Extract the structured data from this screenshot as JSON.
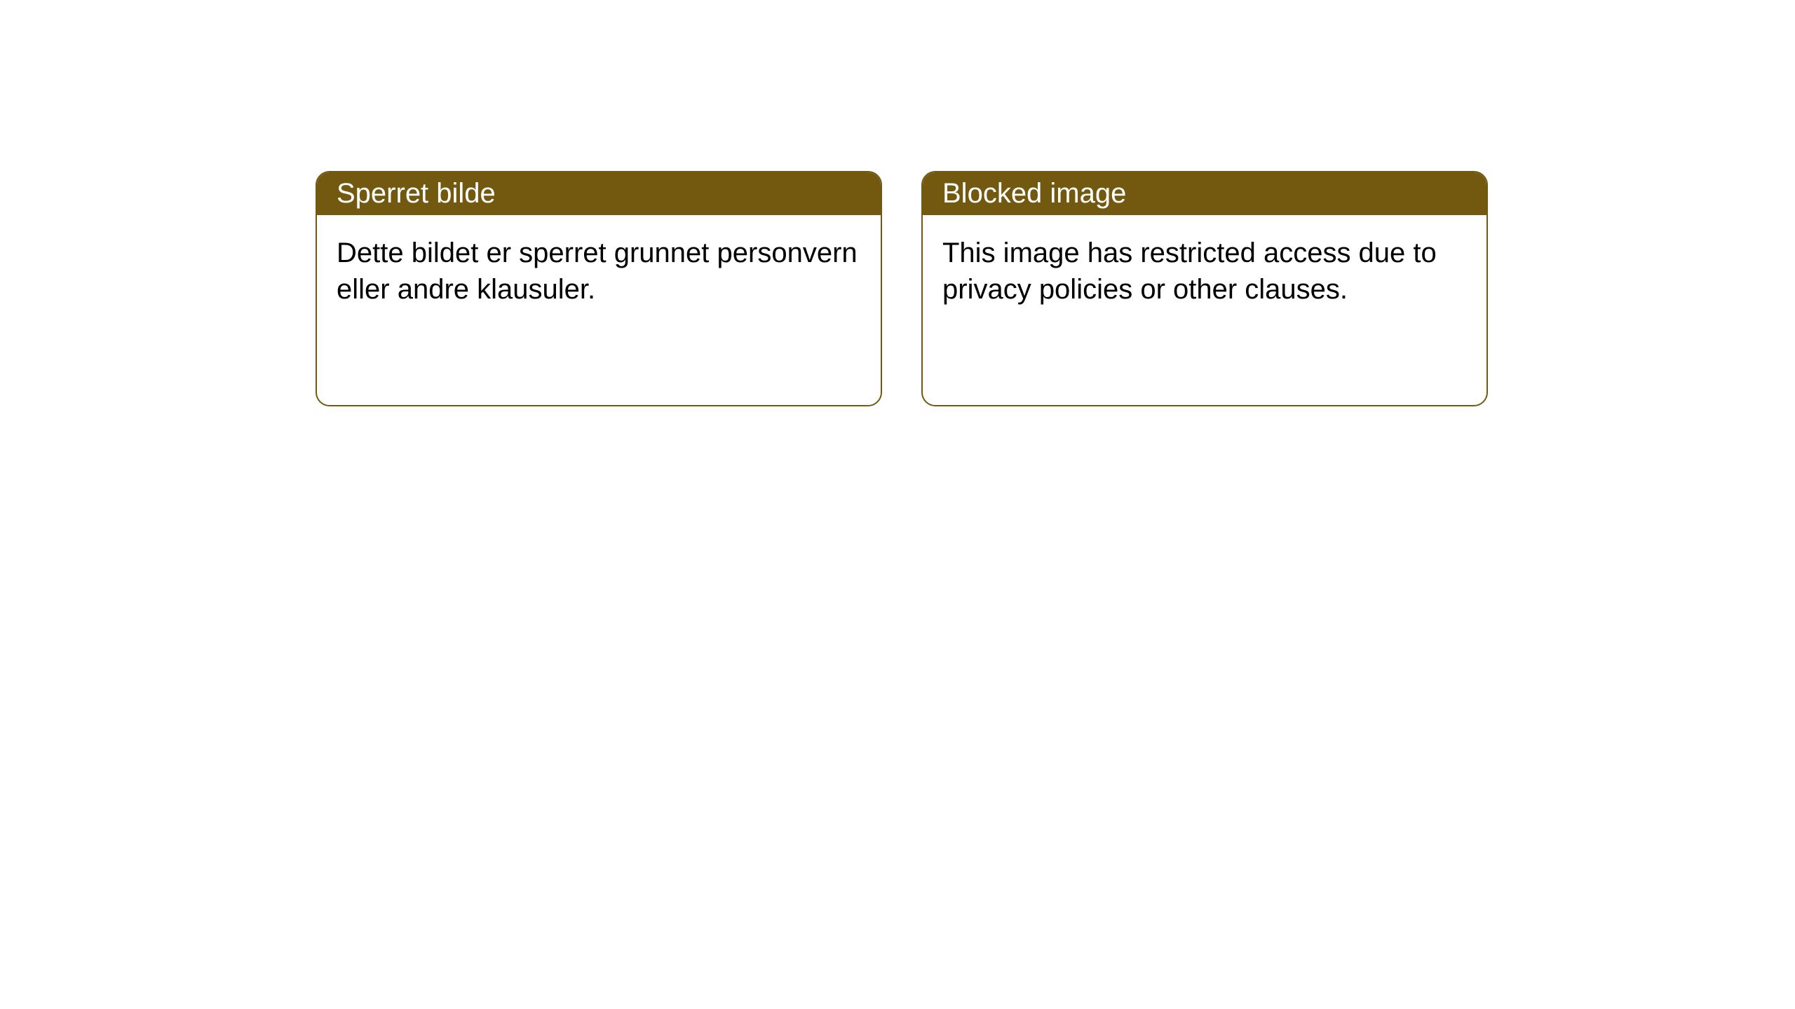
{
  "colors": {
    "header_bg": "#735910",
    "border": "#735910",
    "header_text": "#ffffff",
    "body_text": "#000000",
    "page_bg": "#ffffff"
  },
  "cards": [
    {
      "title": "Sperret bilde",
      "body": "Dette bildet er sperret grunnet personvern eller andre klausuler."
    },
    {
      "title": "Blocked image",
      "body": "This image has restricted access due to privacy policies or other clauses."
    }
  ],
  "typography": {
    "header_fontsize": 40,
    "body_fontsize": 40
  }
}
